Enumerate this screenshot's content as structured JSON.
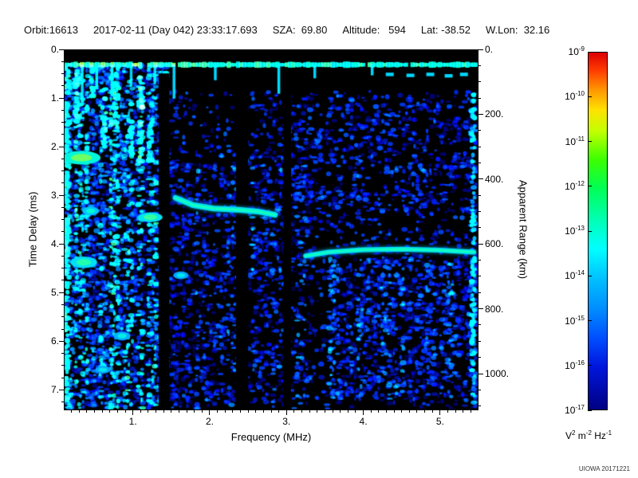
{
  "header": {
    "orbit": "Orbit:16613",
    "datetime": "2017-02-11 (Day 042) 23:33:17.693",
    "sza": "SZA:  69.80",
    "altitude": "Altitude:   594",
    "lat": "Lat: -38.52",
    "wlon": "W.Lon:  32.16"
  },
  "watermark": "UIOWA 20171221",
  "chart_data": {
    "type": "heatmap",
    "title": "",
    "xlabel": "Frequency (MHz)",
    "ylabel_left": "Time Delay (ms)",
    "ylabel_right": "Apparent Range (km)",
    "x_range_mhz": [
      0.1,
      5.5
    ],
    "y_range_ms": [
      0,
      7.42
    ],
    "range_km_per_ms": 150,
    "x_ticks": [
      {
        "v": 1,
        "label": "1."
      },
      {
        "v": 2,
        "label": "2."
      },
      {
        "v": 3,
        "label": "3."
      },
      {
        "v": 4,
        "label": "4."
      },
      {
        "v": 5,
        "label": "5."
      }
    ],
    "x_minor_step": 0.1,
    "y_ticks": [
      {
        "v": 0,
        "label": "0."
      },
      {
        "v": 1,
        "label": "1."
      },
      {
        "v": 2,
        "label": "2."
      },
      {
        "v": 3,
        "label": "3."
      },
      {
        "v": 4,
        "label": "4."
      },
      {
        "v": 5,
        "label": "5."
      },
      {
        "v": 6,
        "label": "6."
      },
      {
        "v": 7,
        "label": "7."
      }
    ],
    "y_minor_step": 0.25,
    "range_ticks": [
      {
        "v": 0,
        "label": "0."
      },
      {
        "v": 200,
        "label": "200."
      },
      {
        "v": 400,
        "label": "400."
      },
      {
        "v": 600,
        "label": "600."
      },
      {
        "v": 800,
        "label": "800."
      },
      {
        "v": 1000,
        "label": "1000."
      }
    ],
    "range_minor_step": 50,
    "colorbar": {
      "scale": "log",
      "exponents": [
        "-9",
        "-10",
        "-11",
        "-12",
        "-13",
        "-14",
        "-15",
        "-16",
        "-17"
      ],
      "unit_parts": [
        {
          "base": "V",
          "sup": "2"
        },
        {
          "base": "m",
          "sup": "-2"
        },
        {
          "base": "Hz",
          "sup": "-1"
        }
      ],
      "gradient": [
        [
          0,
          "#dd0000"
        ],
        [
          0.05,
          "#ff3c00"
        ],
        [
          0.1,
          "#ff9000"
        ],
        [
          0.16,
          "#ffe100"
        ],
        [
          0.22,
          "#c3ff00"
        ],
        [
          0.3,
          "#3cff00"
        ],
        [
          0.38,
          "#00ff55"
        ],
        [
          0.47,
          "#00ffb6"
        ],
        [
          0.55,
          "#00ffff"
        ],
        [
          0.63,
          "#00c3ff"
        ],
        [
          0.72,
          "#008cff"
        ],
        [
          0.8,
          "#004eff"
        ],
        [
          0.88,
          "#0016dd"
        ],
        [
          1,
          "#000082"
        ]
      ]
    },
    "colormap": [
      [
        0,
        "#000024"
      ],
      [
        0.12,
        "#000492"
      ],
      [
        0.25,
        "#0032ff"
      ],
      [
        0.4,
        "#008ffc"
      ],
      [
        0.55,
        "#00d8ff"
      ],
      [
        0.68,
        "#00ffd0"
      ],
      [
        0.78,
        "#55ff7d"
      ],
      [
        0.88,
        "#cfff00"
      ],
      [
        0.95,
        "#ff9d00"
      ],
      [
        1,
        "#ff0000"
      ]
    ],
    "features": {
      "surface_band": {
        "delay_ms": 0.3,
        "f_start": 0.1,
        "f_end": 5.5
      },
      "band_drips": [
        {
          "f": 0.33,
          "to": 1.15
        },
        {
          "f": 0.52,
          "to": 0.8
        },
        {
          "f": 0.72,
          "to": 0.95
        },
        {
          "f": 0.97,
          "to": 0.75
        },
        {
          "f": 1.28,
          "to": 0.7
        },
        {
          "f": 1.53,
          "to": 1.0
        },
        {
          "f": 2.07,
          "to": 0.62
        },
        {
          "f": 2.9,
          "to": 0.9
        },
        {
          "f": 3.37,
          "to": 0.58
        },
        {
          "f": 4.12,
          "to": 0.52
        }
      ],
      "band_dashes": [
        {
          "f": 4.35,
          "d": 0.5
        },
        {
          "f": 4.62,
          "d": 0.52
        },
        {
          "f": 4.88,
          "d": 0.5
        },
        {
          "f": 5.12,
          "d": 0.53
        },
        {
          "f": 5.32,
          "d": 0.5
        }
      ],
      "dark_bands": [
        [
          1.33,
          1.47
        ],
        [
          2.34,
          2.5
        ],
        [
          2.96,
          3.06
        ]
      ],
      "echo_traces": [
        {
          "points": [
            [
              1.55,
              3.05
            ],
            [
              1.78,
              3.2
            ],
            [
              2.05,
              3.27
            ],
            [
              2.4,
              3.3
            ],
            [
              2.62,
              3.33
            ],
            [
              2.85,
              3.4
            ]
          ],
          "width": 7
        },
        {
          "points": [
            [
              3.25,
              4.25
            ],
            [
              3.55,
              4.17
            ],
            [
              4.0,
              4.12
            ],
            [
              4.5,
              4.11
            ],
            [
              5.0,
              4.13
            ],
            [
              5.45,
              4.17
            ]
          ],
          "width": 6
        }
      ],
      "bright_blobs": [
        {
          "f": 0.32,
          "d": 2.22,
          "w": 0.5,
          "h": 0.28,
          "i": 0.8
        },
        {
          "f": 0.35,
          "d": 4.38,
          "w": 0.35,
          "h": 0.24,
          "i": 0.72
        },
        {
          "f": 0.44,
          "d": 3.32,
          "w": 0.22,
          "h": 0.18,
          "i": 0.66
        },
        {
          "f": 1.22,
          "d": 3.45,
          "w": 0.32,
          "h": 0.2,
          "i": 0.74
        },
        {
          "f": 1.62,
          "d": 4.65,
          "w": 0.2,
          "h": 0.16,
          "i": 0.6
        },
        {
          "f": 0.85,
          "d": 5.9,
          "w": 0.22,
          "h": 0.18,
          "i": 0.62
        },
        {
          "f": 0.6,
          "d": 6.6,
          "w": 0.2,
          "h": 0.16,
          "i": 0.6
        }
      ],
      "bright_columns": [
        {
          "f": 0.13,
          "d0": 0.3,
          "d1": 7.35,
          "i": 0.62
        },
        {
          "f": 0.26,
          "d0": 0.35,
          "d1": 1.4,
          "i": 0.66
        },
        {
          "f": 0.47,
          "d0": 0.35,
          "d1": 1.0,
          "i": 0.6
        },
        {
          "f": 0.62,
          "d0": 0.8,
          "d1": 2.0,
          "i": 0.64
        },
        {
          "f": 0.78,
          "d0": 0.35,
          "d1": 1.5,
          "i": 0.6
        },
        {
          "f": 0.97,
          "d0": 1.4,
          "d1": 2.2,
          "i": 0.6
        },
        {
          "f": 1.1,
          "d0": 0.35,
          "d1": 2.4,
          "i": 0.68
        },
        {
          "f": 1.22,
          "d0": 1.5,
          "d1": 2.3,
          "i": 0.6
        },
        {
          "f": 5.44,
          "d0": 0.9,
          "d1": 7.3,
          "i": 0.42
        }
      ],
      "noise_regions": [
        {
          "f0": 0.1,
          "f1": 1.45,
          "d0": 0.3,
          "d1": 7.4,
          "n": 2800,
          "imin": 0.12,
          "imax": 0.6,
          "stripes": true
        },
        {
          "f0": 1.45,
          "f1": 5.5,
          "d0": 0.85,
          "d1": 7.4,
          "n": 1700,
          "imin": 0.07,
          "imax": 0.34,
          "stripes": false
        },
        {
          "f0": 3.55,
          "f1": 5.5,
          "d0": 4.3,
          "d1": 7.2,
          "n": 900,
          "imin": 0.14,
          "imax": 0.4,
          "stripes": true
        },
        {
          "f0": 1.45,
          "f1": 3.35,
          "d0": 2.3,
          "d1": 7.35,
          "n": 800,
          "imin": 0.1,
          "imax": 0.38,
          "stripes": true
        },
        {
          "f0": 2.6,
          "f1": 5.5,
          "d0": 1.1,
          "d1": 3.4,
          "n": 450,
          "imin": 0.07,
          "imax": 0.3,
          "stripes": false
        }
      ]
    }
  }
}
